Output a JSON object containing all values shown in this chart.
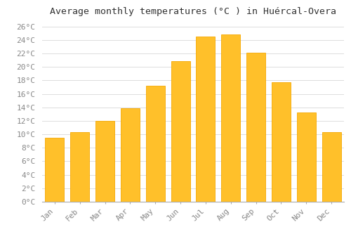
{
  "title": "Average monthly temperatures (°C ) in Huércal-Overa",
  "months": [
    "Jan",
    "Feb",
    "Mar",
    "Apr",
    "May",
    "Jun",
    "Jul",
    "Aug",
    "Sep",
    "Oct",
    "Nov",
    "Dec"
  ],
  "values": [
    9.5,
    10.3,
    12.0,
    13.9,
    17.2,
    20.9,
    24.5,
    24.8,
    22.1,
    17.7,
    13.2,
    10.3
  ],
  "bar_color": "#FFC02A",
  "bar_edge_color": "#F5A800",
  "ylim": [
    0,
    27
  ],
  "yticks": [
    0,
    2,
    4,
    6,
    8,
    10,
    12,
    14,
    16,
    18,
    20,
    22,
    24,
    26
  ],
  "ytick_labels": [
    "0°C",
    "2°C",
    "4°C",
    "6°C",
    "8°C",
    "10°C",
    "12°C",
    "14°C",
    "16°C",
    "18°C",
    "20°C",
    "22°C",
    "24°C",
    "26°C"
  ],
  "grid_color": "#dddddd",
  "bg_color": "#ffffff",
  "title_fontsize": 9.5,
  "tick_fontsize": 8,
  "font_family": "monospace",
  "bar_width": 0.75
}
